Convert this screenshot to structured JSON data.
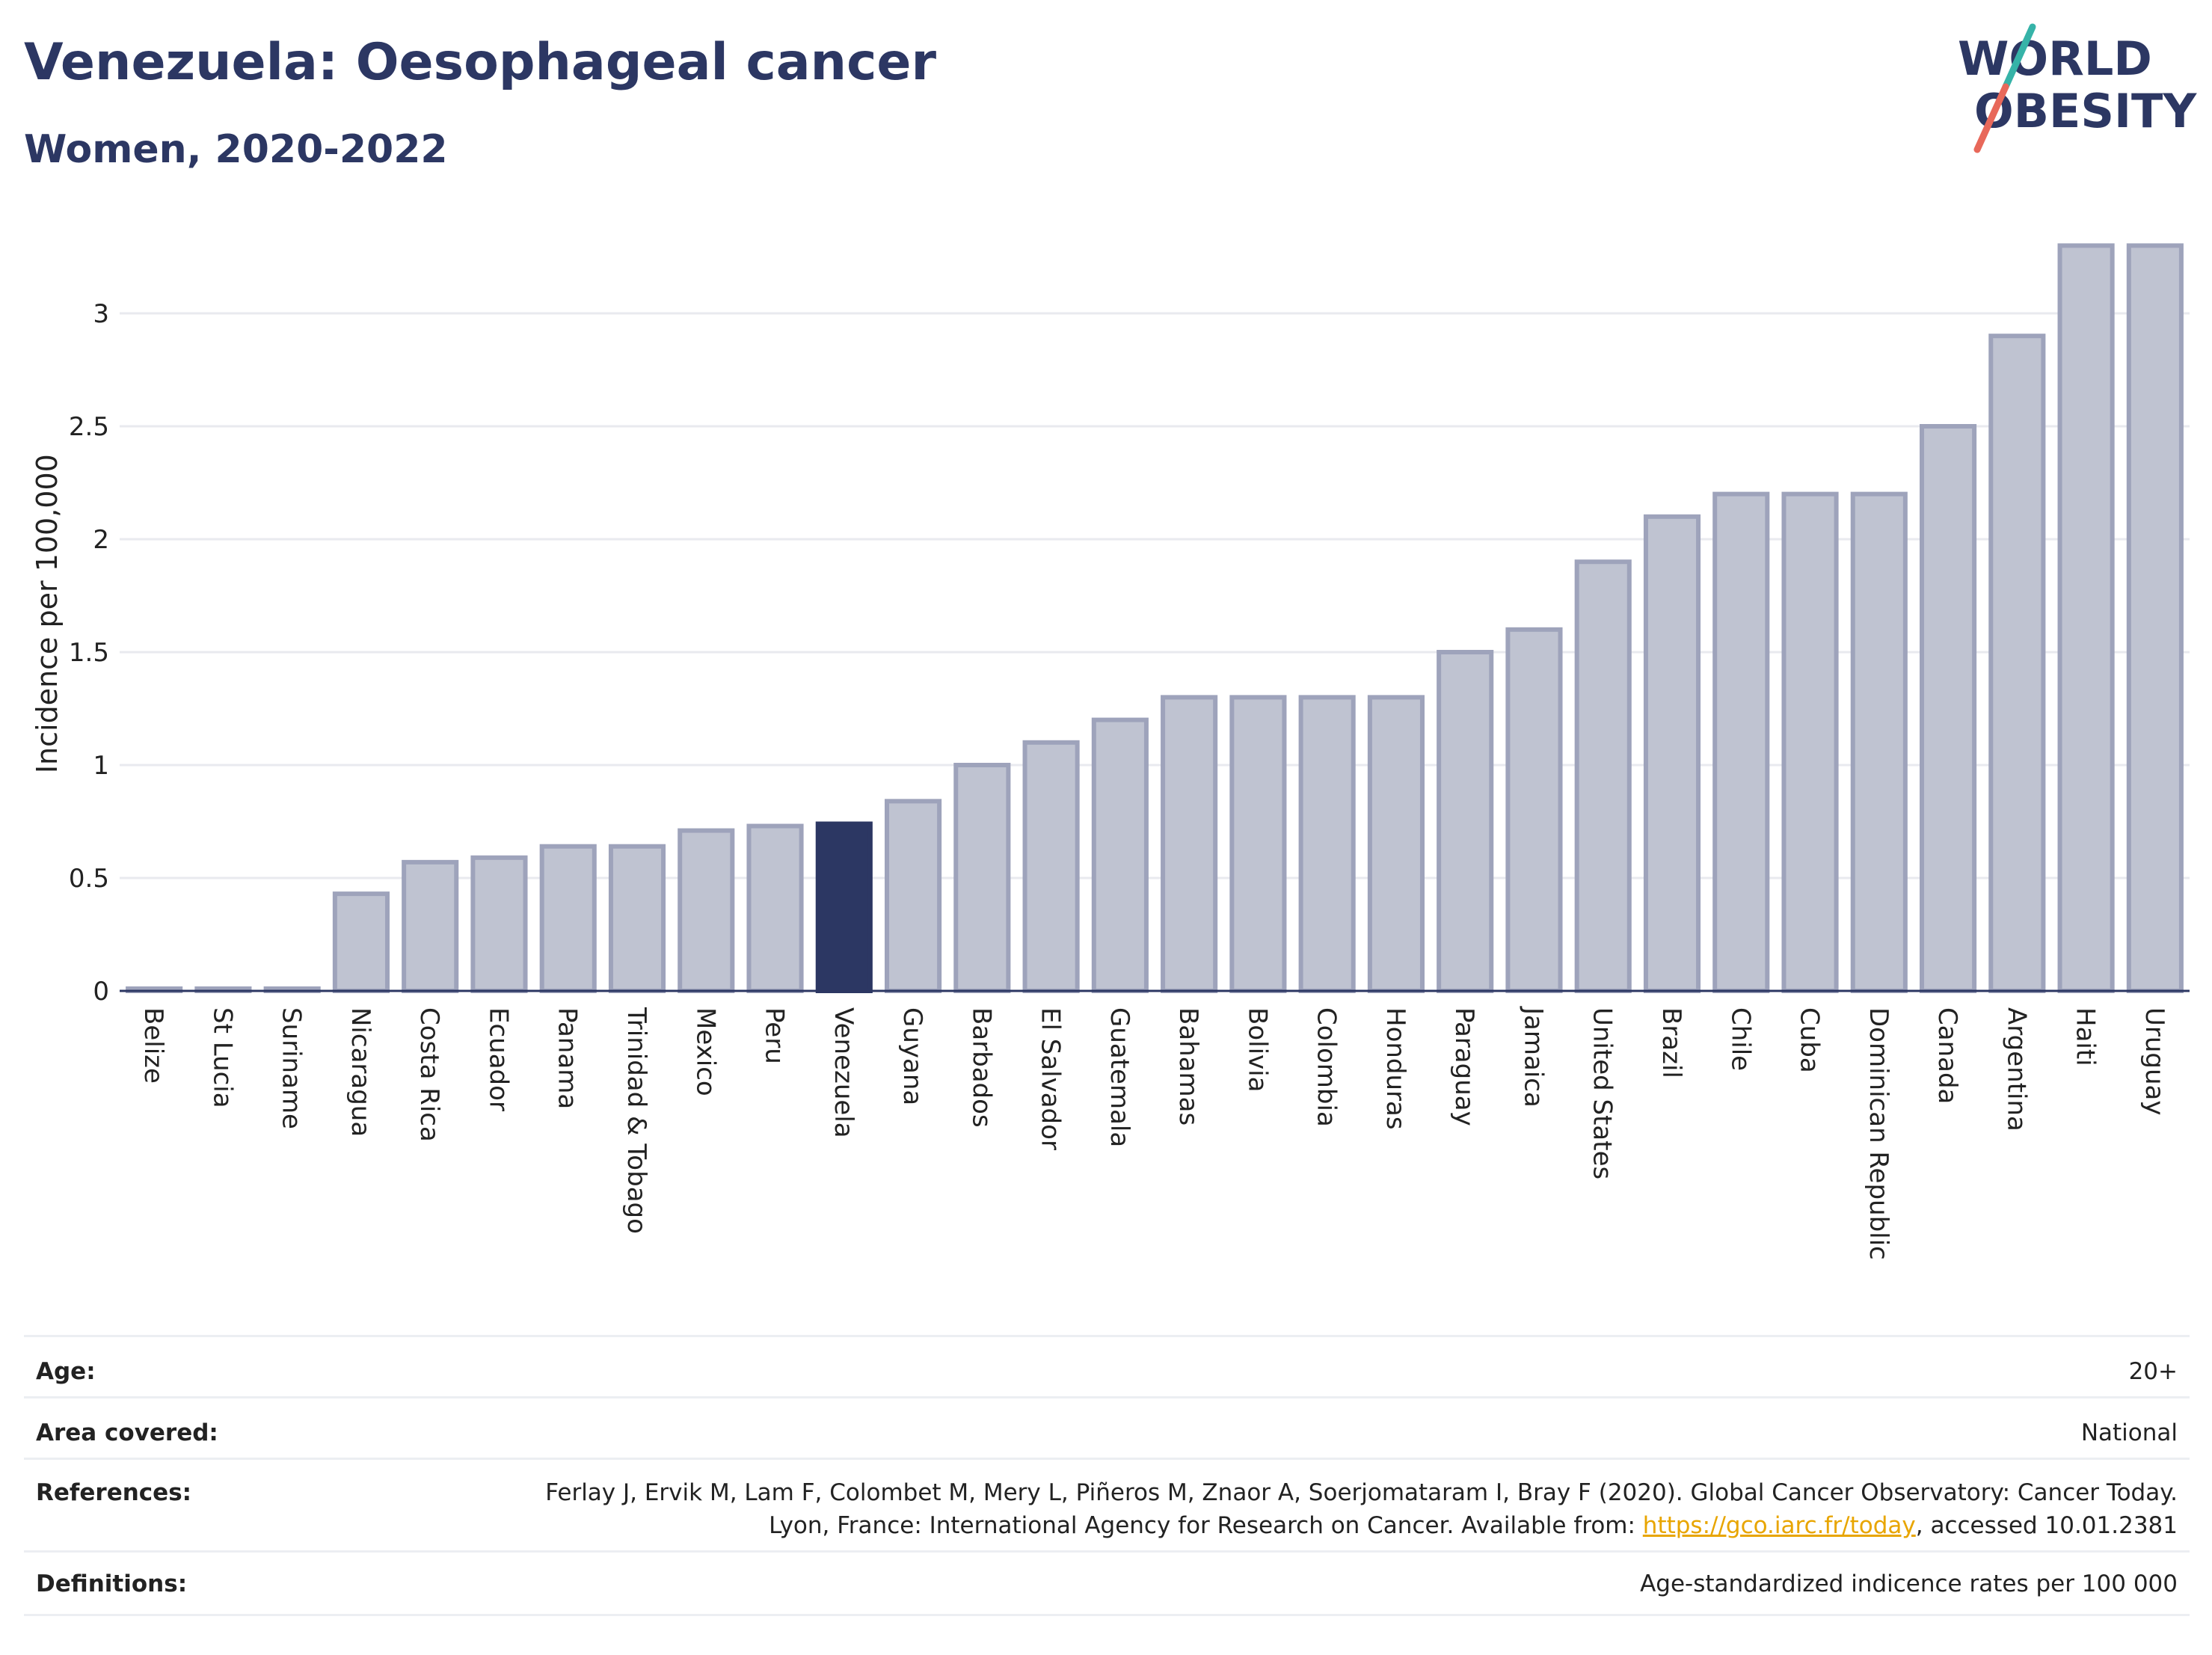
{
  "header": {
    "title": "Venezuela: Oesophageal cancer",
    "subtitle": "Women, 2020-2022"
  },
  "logo": {
    "line1": "WORLD",
    "line2": "OBESITY",
    "text_color": "#2c3763",
    "slash_color_top": "#36b3a8",
    "slash_color_bottom": "#e8685a"
  },
  "colors": {
    "bar_default": "#bfc3d1",
    "bar_default_stroke": "#9ea3bb",
    "bar_highlight": "#2c3763",
    "gridline": "#e9eaef"
  },
  "chart_data": {
    "type": "bar",
    "categories": [
      "Belize",
      "St Lucia",
      "Suriname",
      "Nicaragua",
      "Costa Rica",
      "Ecuador",
      "Panama",
      "Trinidad & Tobago",
      "Mexico",
      "Peru",
      "Venezuela",
      "Guyana",
      "Barbados",
      "El Salvador",
      "Guatemala",
      "Bahamas",
      "Bolivia",
      "Colombia",
      "Honduras",
      "Paraguay",
      "Jamaica",
      "United States",
      "Brazil",
      "Chile",
      "Cuba",
      "Dominican Republic",
      "Canada",
      "Argentina",
      "Haiti",
      "Uruguay"
    ],
    "values": [
      0.0,
      0.0,
      0.0,
      0.43,
      0.57,
      0.59,
      0.64,
      0.64,
      0.71,
      0.73,
      0.74,
      0.84,
      1.0,
      1.1,
      1.2,
      1.3,
      1.3,
      1.3,
      1.3,
      1.5,
      1.6,
      1.9,
      2.1,
      2.2,
      2.2,
      2.2,
      2.5,
      2.9,
      3.3,
      3.3
    ],
    "highlight": "Venezuela",
    "ylabel": "Incidence per 100,000",
    "yticks": [
      0,
      0.5,
      1,
      1.5,
      2,
      2.5,
      3
    ],
    "ytick_labels": [
      "0",
      "0.5",
      "1",
      "1.5",
      "2",
      "2.5",
      "3"
    ],
    "ylim": [
      0,
      3.35
    ],
    "grid": true
  },
  "info": {
    "age_label": "Age:",
    "age_value": "20+",
    "area_label": "Area covered:",
    "area_value": "National",
    "references_label": "References:",
    "references_text_1": "Ferlay J, Ervik M, Lam F, Colombet M, Mery L, Piñeros M, Znaor A, Soerjomataram I, Bray F (2020). Global Cancer Observatory: Cancer Today. Lyon, France: International Agency for Research on Cancer. Available from: ",
    "references_link": "https://gco.iarc.fr/today",
    "references_text_2": ", accessed 10.01.2381",
    "definitions_label": "Definitions:",
    "definitions_value": "Age-standardized indicence rates per 100 000"
  }
}
